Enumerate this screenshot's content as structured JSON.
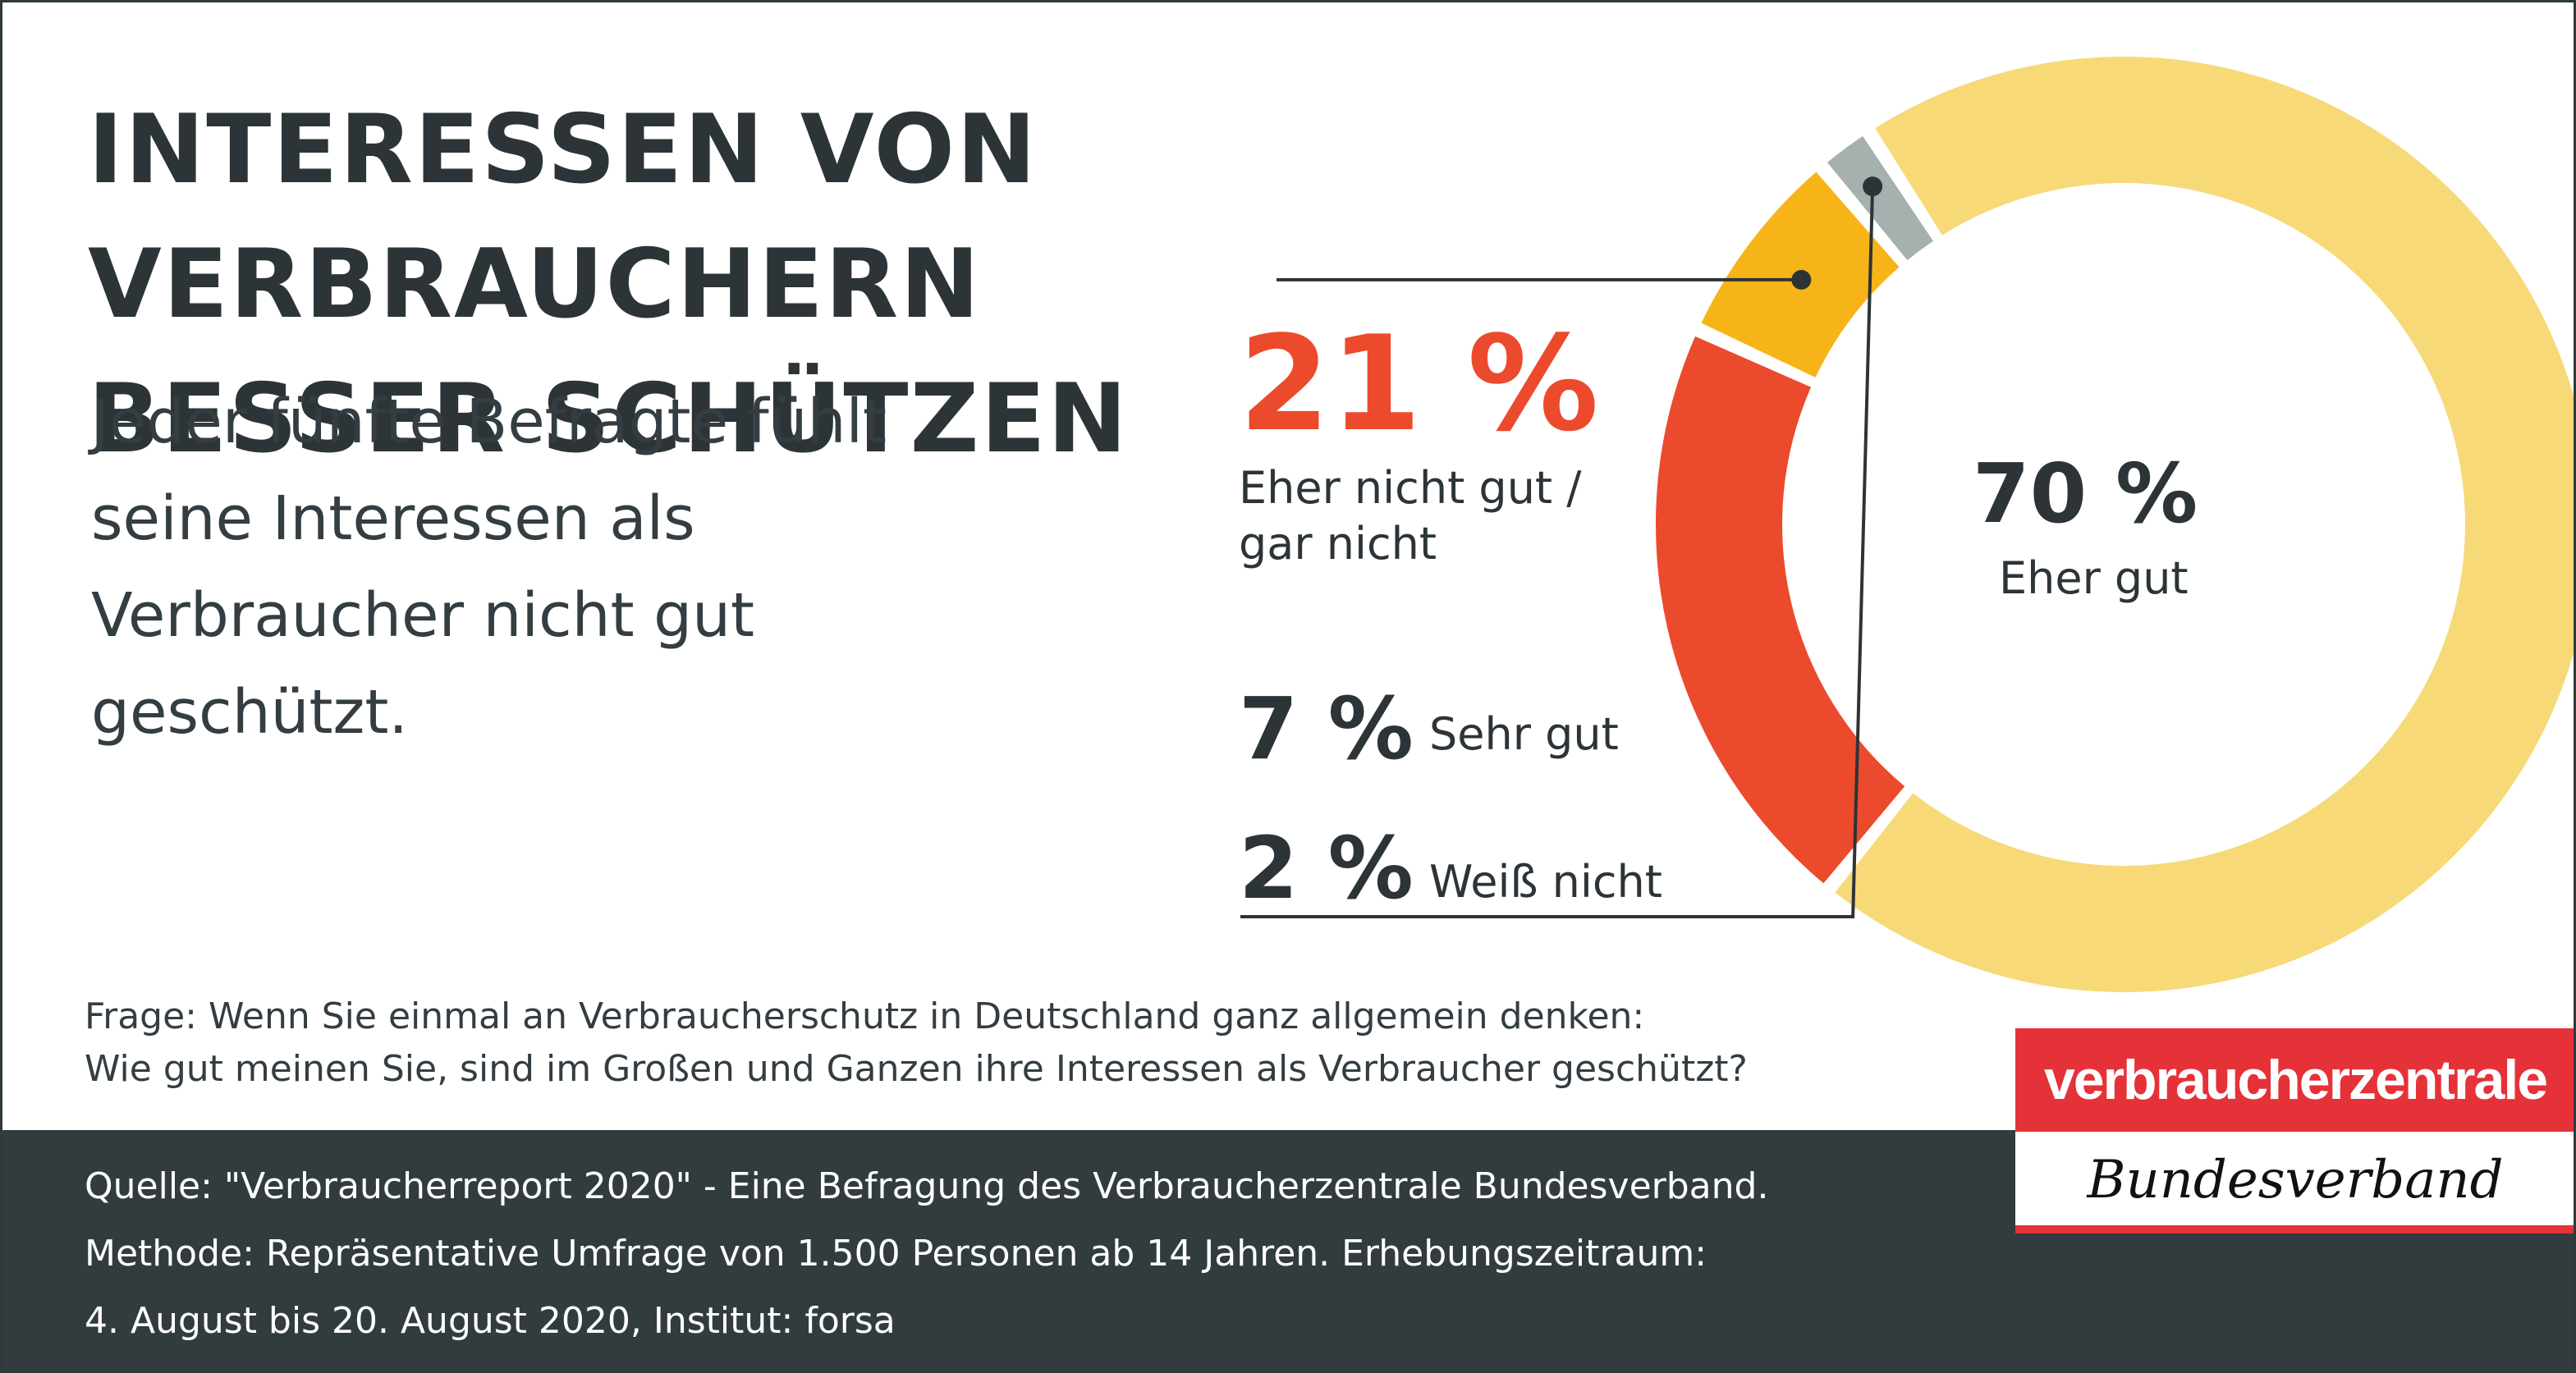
{
  "title": [
    "INTERESSEN VON VERBRAUCHERN",
    "BESSER SCHÜTZEN"
  ],
  "subtitle": "Jeder fünfte Befragte fühlt seine Interessen als Verbraucher nicht gut geschützt.",
  "chart_data": {
    "type": "pie",
    "style": "donut",
    "categories": [
      "Eher gut",
      "Eher nicht gut / gar nicht",
      "Sehr gut",
      "Weiß nicht"
    ],
    "values": [
      70,
      21,
      7,
      2
    ],
    "value_labels": [
      "70 %",
      "21 %",
      "7 %",
      "2 %"
    ],
    "colors": [
      "#f7d978",
      "#ec4a2c",
      "#f7b418",
      "#a6b0ae"
    ]
  },
  "labels": {
    "eher_gut_pct": "70 %",
    "eher_gut": "Eher gut",
    "nicht_gut_pct": "21 %",
    "nicht_gut_line1": "Eher nicht gut /",
    "nicht_gut_line2": "gar nicht",
    "sehr_gut_pct": "7 %",
    "sehr_gut": "Sehr gut",
    "weiss_nicht_pct": "2 %",
    "weiss_nicht": "Weiß nicht"
  },
  "question": [
    "Frage: Wenn Sie einmal an Verbraucherschutz in Deutschland ganz allgemein denken:",
    "Wie gut meinen Sie, sind im Großen und Ganzen ihre Interessen als Verbraucher geschützt?"
  ],
  "footer": [
    "Quelle: \"Verbraucherreport 2020\" - Eine Befragung des Verbraucherzentrale Bundesverband.",
    "Methode: Repräsentative Umfrage von 1.500 Personen ab 14 Jahren. Erhebungszeitraum:",
    "4. August bis 20. August 2020, Institut: forsa"
  ],
  "logo": {
    "top": "verbraucherzentrale",
    "bottom": "Bundesverband"
  },
  "colors": {
    "text_dark": "#2c3438",
    "accent_red": "#ec4a2c",
    "footer_bg": "#323b3e",
    "logo_red": "#e53238"
  }
}
